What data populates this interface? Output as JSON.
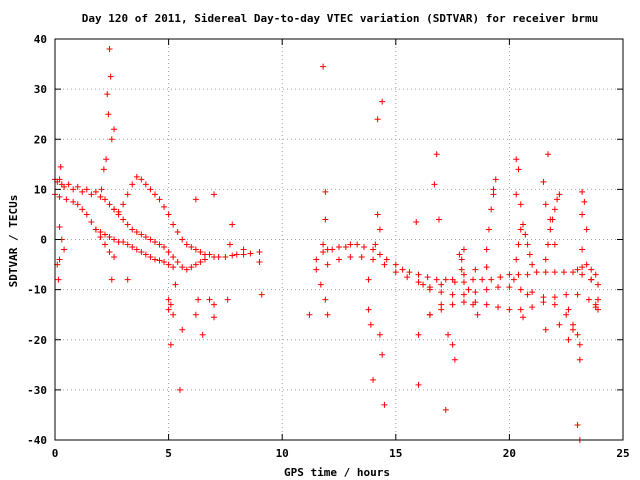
{
  "chart_data": {
    "type": "scatter",
    "title": "Day 120 of 2011, Sidereal Day-to-day VTEC variation (SDTVAR) for receiver brmu",
    "xlabel": "GPS time / hours",
    "ylabel": "SDTVAR / TECUs",
    "xlim": [
      0,
      25
    ],
    "ylim": [
      -40,
      40
    ],
    "xticks": [
      0,
      5,
      10,
      15,
      20,
      25
    ],
    "yticks": [
      -40,
      -30,
      -20,
      -10,
      0,
      10,
      20,
      30,
      40
    ],
    "grid": true,
    "marker": "plus",
    "color": "#ff0000",
    "series": [
      {
        "values": [
          [
            0.0,
            12
          ],
          [
            0.1,
            11.5
          ],
          [
            0.2,
            12
          ],
          [
            0.3,
            11
          ],
          [
            0.4,
            10.5
          ],
          [
            0.6,
            11
          ],
          [
            0.8,
            10
          ],
          [
            1.0,
            10.5
          ],
          [
            1.2,
            9.5
          ],
          [
            1.4,
            10
          ],
          [
            1.6,
            9
          ],
          [
            1.8,
            9.5
          ],
          [
            2.0,
            8.5
          ],
          [
            2.2,
            8
          ],
          [
            2.4,
            7
          ],
          [
            2.6,
            6
          ],
          [
            2.8,
            5.5
          ],
          [
            3.0,
            7
          ],
          [
            3.2,
            9
          ],
          [
            3.4,
            11
          ],
          [
            3.6,
            12.5
          ],
          [
            3.8,
            12
          ],
          [
            4.0,
            11
          ],
          [
            4.2,
            10
          ],
          [
            4.4,
            9
          ],
          [
            4.6,
            8
          ],
          [
            4.8,
            6.5
          ],
          [
            5.0,
            5
          ],
          [
            5.2,
            3
          ],
          [
            5.4,
            1.5
          ],
          [
            5.6,
            0
          ],
          [
            5.8,
            -1
          ],
          [
            6.0,
            -1.5
          ],
          [
            6.2,
            -2
          ],
          [
            6.4,
            -2.5
          ],
          [
            6.6,
            -3
          ],
          [
            6.8,
            -3
          ],
          [
            7.0,
            -3.5
          ],
          [
            7.2,
            -3.5
          ],
          [
            7.5,
            -3.5
          ],
          [
            7.8,
            -3.2
          ],
          [
            8.0,
            -3
          ],
          [
            8.3,
            -3
          ],
          [
            8.6,
            -2.8
          ],
          [
            9.0,
            -2.5
          ],
          [
            0.0,
            9
          ],
          [
            0.2,
            8.5
          ],
          [
            0.5,
            8
          ],
          [
            0.8,
            7.5
          ],
          [
            1.0,
            7
          ],
          [
            1.2,
            6
          ],
          [
            1.4,
            5
          ],
          [
            1.6,
            3.5
          ],
          [
            1.8,
            2
          ],
          [
            2.0,
            0.5
          ],
          [
            2.2,
            -1
          ],
          [
            2.4,
            -2.5
          ],
          [
            2.6,
            -3.5
          ],
          [
            2.6,
            6
          ],
          [
            2.8,
            5
          ],
          [
            3.0,
            4
          ],
          [
            3.2,
            3
          ],
          [
            3.4,
            2
          ],
          [
            3.6,
            1.5
          ],
          [
            3.8,
            1
          ],
          [
            4.0,
            0.5
          ],
          [
            4.2,
            0
          ],
          [
            4.4,
            -0.5
          ],
          [
            4.6,
            -1
          ],
          [
            4.8,
            -1.5
          ],
          [
            5.0,
            -2.5
          ],
          [
            5.2,
            -3.5
          ],
          [
            5.4,
            -4.5
          ],
          [
            5.6,
            -5.5
          ],
          [
            5.8,
            -6
          ],
          [
            6.0,
            -5.5
          ],
          [
            6.2,
            -5
          ],
          [
            6.4,
            -4.5
          ],
          [
            6.6,
            -4
          ],
          [
            1.8,
            2
          ],
          [
            2.0,
            1.5
          ],
          [
            2.2,
            1
          ],
          [
            2.4,
            0.5
          ],
          [
            2.6,
            0
          ],
          [
            2.8,
            -0.5
          ],
          [
            3.0,
            -0.5
          ],
          [
            3.2,
            -1
          ],
          [
            3.4,
            -1.5
          ],
          [
            3.6,
            -2
          ],
          [
            3.8,
            -2.5
          ],
          [
            4.0,
            -3
          ],
          [
            4.2,
            -3.5
          ],
          [
            4.4,
            -4
          ],
          [
            4.6,
            -4.2
          ],
          [
            4.8,
            -4.5
          ],
          [
            5.0,
            -5
          ],
          [
            5.2,
            -5.5
          ],
          [
            0.2,
            2.5
          ],
          [
            0.3,
            0
          ],
          [
            0.4,
            -2
          ],
          [
            0.2,
            -4
          ],
          [
            0.1,
            -5
          ],
          [
            0.25,
            14.5
          ],
          [
            0.15,
            -8
          ],
          [
            2.4,
            38
          ],
          [
            2.45,
            32.5
          ],
          [
            2.3,
            29
          ],
          [
            2.35,
            25
          ],
          [
            2.6,
            22
          ],
          [
            2.5,
            20
          ],
          [
            2.25,
            16
          ],
          [
            2.15,
            14
          ],
          [
            2.05,
            10
          ],
          [
            2.5,
            -8
          ],
          [
            3.2,
            -8
          ],
          [
            5.0,
            -12
          ],
          [
            5.1,
            -13
          ],
          [
            5.0,
            -14
          ],
          [
            5.2,
            -15
          ],
          [
            5.1,
            -21
          ],
          [
            5.3,
            -9
          ],
          [
            5.6,
            -18
          ],
          [
            5.5,
            -30
          ],
          [
            6.2,
            -15
          ],
          [
            6.5,
            -19
          ],
          [
            6.8,
            -12
          ],
          [
            7.0,
            -13
          ],
          [
            6.3,
            -12
          ],
          [
            7.0,
            -15.5
          ],
          [
            7.6,
            -12
          ],
          [
            6.2,
            8
          ],
          [
            7.0,
            9
          ],
          [
            7.8,
            3
          ],
          [
            7.7,
            -1
          ],
          [
            8.3,
            -2
          ],
          [
            9.1,
            -11
          ],
          [
            9.0,
            -4.5
          ],
          [
            11.2,
            -15
          ],
          [
            11.8,
            34.5
          ],
          [
            11.9,
            9.5
          ],
          [
            11.9,
            4
          ],
          [
            11.8,
            -1
          ],
          [
            11.7,
            -9
          ],
          [
            11.9,
            -12
          ],
          [
            12.0,
            -15
          ],
          [
            11.5,
            -4
          ],
          [
            11.8,
            -2.5
          ],
          [
            12.0,
            -2
          ],
          [
            12.2,
            -2
          ],
          [
            12.5,
            -1.5
          ],
          [
            12.8,
            -1.5
          ],
          [
            13.0,
            -1
          ],
          [
            13.3,
            -1
          ],
          [
            13.6,
            -1.5
          ],
          [
            14.0,
            -2
          ],
          [
            14.3,
            -3
          ],
          [
            14.6,
            -4
          ],
          [
            15.0,
            -5
          ],
          [
            15.3,
            -6
          ],
          [
            15.6,
            -6.5
          ],
          [
            16.0,
            -7
          ],
          [
            16.4,
            -7.5
          ],
          [
            16.8,
            -8
          ],
          [
            17.2,
            -8
          ],
          [
            17.6,
            -8.5
          ],
          [
            18.0,
            -8.5
          ],
          [
            18.4,
            -8
          ],
          [
            18.8,
            -8
          ],
          [
            19.2,
            -8
          ],
          [
            19.6,
            -7.5
          ],
          [
            20.0,
            -7
          ],
          [
            20.4,
            -7
          ],
          [
            20.8,
            -7
          ],
          [
            21.2,
            -6.5
          ],
          [
            21.6,
            -6.5
          ],
          [
            22.0,
            -6.5
          ],
          [
            22.4,
            -6.5
          ],
          [
            22.8,
            -6.5
          ],
          [
            23.2,
            -7
          ],
          [
            23.6,
            -8
          ],
          [
            11.5,
            -6
          ],
          [
            12.0,
            -5
          ],
          [
            12.5,
            -4
          ],
          [
            13.0,
            -3.5
          ],
          [
            13.5,
            -3.5
          ],
          [
            14.0,
            -4
          ],
          [
            14.5,
            -5
          ],
          [
            15.0,
            -6.5
          ],
          [
            15.5,
            -7.5
          ],
          [
            16.0,
            -8.5
          ],
          [
            16.5,
            -9.5
          ],
          [
            17.0,
            -10.5
          ],
          [
            17.5,
            -11
          ],
          [
            18.0,
            -11
          ],
          [
            18.5,
            -10.5
          ],
          [
            19.0,
            -10
          ],
          [
            19.5,
            -9.5
          ],
          [
            20.0,
            -9.5
          ],
          [
            20.5,
            -10
          ],
          [
            21.0,
            -10.5
          ],
          [
            21.5,
            -11.5
          ],
          [
            22.0,
            -13
          ],
          [
            22.5,
            -15
          ],
          [
            22.8,
            -17
          ],
          [
            23.0,
            -19
          ],
          [
            23.1,
            -21
          ],
          [
            16.5,
            -15
          ],
          [
            17.0,
            -14
          ],
          [
            17.5,
            -13
          ],
          [
            18.0,
            -12.5
          ],
          [
            18.5,
            -12.5
          ],
          [
            19.0,
            -13
          ],
          [
            19.5,
            -13.5
          ],
          [
            20.0,
            -14
          ],
          [
            20.5,
            -14
          ],
          [
            21.0,
            -13.5
          ],
          [
            21.5,
            -12.5
          ],
          [
            22.0,
            -11.5
          ],
          [
            22.5,
            -11
          ],
          [
            23.0,
            -11
          ],
          [
            23.5,
            -12
          ],
          [
            23.8,
            -13.5
          ],
          [
            16.5,
            -10
          ],
          [
            17.0,
            -9
          ],
          [
            17.5,
            -8
          ],
          [
            18.0,
            -7
          ],
          [
            18.5,
            -6
          ],
          [
            19.0,
            -5.5
          ],
          [
            19.0,
            -2
          ],
          [
            19.1,
            2
          ],
          [
            19.2,
            6
          ],
          [
            19.3,
            9
          ],
          [
            19.4,
            12
          ],
          [
            19.3,
            10
          ],
          [
            20.2,
            -8
          ],
          [
            20.3,
            -4
          ],
          [
            20.4,
            -1
          ],
          [
            20.5,
            2
          ],
          [
            20.6,
            3
          ],
          [
            20.7,
            1
          ],
          [
            20.8,
            -1
          ],
          [
            20.9,
            -3
          ],
          [
            21.0,
            -5
          ],
          [
            21.6,
            -4
          ],
          [
            21.7,
            -1
          ],
          [
            21.8,
            2
          ],
          [
            21.9,
            4
          ],
          [
            22.0,
            6
          ],
          [
            22.1,
            8
          ],
          [
            22.2,
            9
          ],
          [
            23.0,
            -6
          ],
          [
            23.2,
            -5.5
          ],
          [
            23.4,
            -5
          ],
          [
            23.6,
            -6
          ],
          [
            23.8,
            -7
          ],
          [
            23.9,
            -9
          ],
          [
            23.9,
            -12
          ],
          [
            23.9,
            -14
          ],
          [
            17.9,
            -4
          ],
          [
            17.8,
            -3
          ],
          [
            18.0,
            -2
          ],
          [
            17.9,
            -6
          ],
          [
            18.2,
            -10
          ],
          [
            18.4,
            -13
          ],
          [
            18.6,
            -15
          ],
          [
            14.0,
            -28
          ],
          [
            14.2,
            24
          ],
          [
            14.4,
            27.5
          ],
          [
            14.3,
            -19
          ],
          [
            14.5,
            -33
          ],
          [
            14.4,
            -23
          ],
          [
            13.9,
            -17
          ],
          [
            13.8,
            -14
          ],
          [
            14.2,
            5
          ],
          [
            14.3,
            2
          ],
          [
            14.1,
            -1
          ],
          [
            13.8,
            -8
          ],
          [
            16.0,
            -29
          ],
          [
            16.0,
            -19
          ],
          [
            15.9,
            3.5
          ],
          [
            16.8,
            17
          ],
          [
            17.2,
            -34
          ],
          [
            17.5,
            -21
          ],
          [
            17.6,
            -24
          ],
          [
            17.3,
            -19
          ],
          [
            16.5,
            -15
          ],
          [
            17.0,
            -13
          ],
          [
            16.7,
            11
          ],
          [
            16.9,
            4
          ],
          [
            16.2,
            -9
          ],
          [
            20.3,
            16
          ],
          [
            20.4,
            14
          ],
          [
            20.3,
            9
          ],
          [
            20.5,
            7
          ],
          [
            20.6,
            -15.5
          ],
          [
            20.8,
            -11
          ],
          [
            21.7,
            17
          ],
          [
            21.5,
            11.5
          ],
          [
            21.6,
            7
          ],
          [
            21.8,
            4
          ],
          [
            22.0,
            -1
          ],
          [
            22.2,
            -17
          ],
          [
            21.6,
            -18
          ],
          [
            22.6,
            -14
          ],
          [
            22.8,
            -18
          ],
          [
            22.6,
            -20
          ],
          [
            23.1,
            -24
          ],
          [
            23.0,
            -37
          ],
          [
            23.1,
            -40
          ],
          [
            23.2,
            9.5
          ],
          [
            23.3,
            7.5
          ],
          [
            23.2,
            5
          ],
          [
            23.4,
            2
          ],
          [
            23.2,
            -2
          ],
          [
            23.6,
            -8
          ],
          [
            23.8,
            -13
          ]
        ]
      }
    ]
  }
}
